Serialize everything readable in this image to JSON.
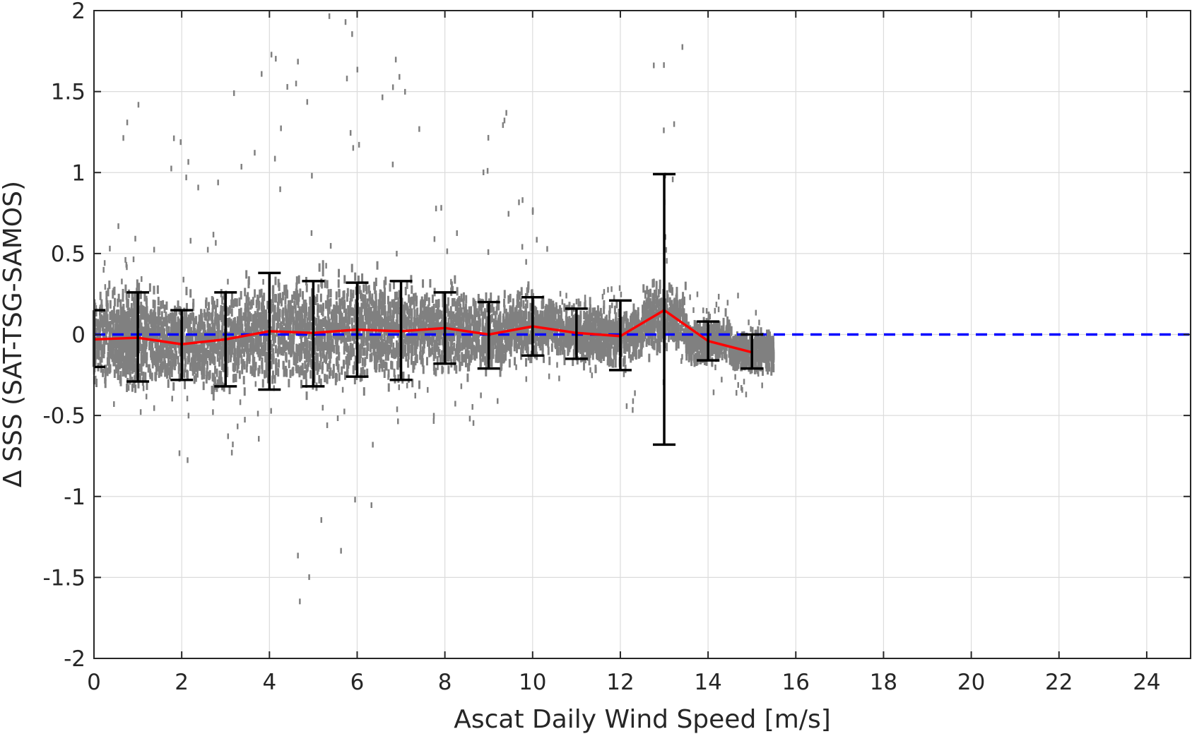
{
  "chart_data": {
    "type": "scatter",
    "xlabel": "Ascat Daily Wind Speed [m/s]",
    "ylabel": "Δ SSS (SAT-TSG-SAMOS)",
    "xlim": [
      0,
      25
    ],
    "ylim": [
      -2,
      2
    ],
    "xticks": [
      0,
      2,
      4,
      6,
      8,
      10,
      12,
      14,
      16,
      18,
      20,
      22,
      24
    ],
    "yticks": [
      2,
      1.5,
      1,
      0.5,
      0,
      -0.5,
      -1,
      -1.5,
      -2
    ],
    "grid": true,
    "colors": {
      "scatter": "#808080",
      "mean_line": "#ff0000",
      "zero_line": "#0000ff",
      "error_bars": "#000000"
    },
    "zero_line": {
      "y": 0,
      "style": "dashed"
    },
    "mean_line": {
      "x": [
        0,
        1,
        2,
        3,
        4,
        5,
        6,
        7,
        8,
        9,
        10,
        11,
        12,
        13,
        14,
        15
      ],
      "y": [
        -0.03,
        -0.02,
        -0.06,
        -0.03,
        0.02,
        0.01,
        0.03,
        0.02,
        0.04,
        0.0,
        0.05,
        0.01,
        -0.01,
        0.15,
        -0.04,
        -0.11
      ]
    },
    "error_bars": [
      {
        "x": 0,
        "low": -0.2,
        "high": 0.15
      },
      {
        "x": 1,
        "low": -0.29,
        "high": 0.26
      },
      {
        "x": 2,
        "low": -0.28,
        "high": 0.15
      },
      {
        "x": 3,
        "low": -0.32,
        "high": 0.26
      },
      {
        "x": 4,
        "low": -0.34,
        "high": 0.38
      },
      {
        "x": 5,
        "low": -0.32,
        "high": 0.33
      },
      {
        "x": 6,
        "low": -0.26,
        "high": 0.32
      },
      {
        "x": 7,
        "low": -0.28,
        "high": 0.33
      },
      {
        "x": 8,
        "low": -0.18,
        "high": 0.26
      },
      {
        "x": 9,
        "low": -0.21,
        "high": 0.2
      },
      {
        "x": 10,
        "low": -0.13,
        "high": 0.23
      },
      {
        "x": 11,
        "low": -0.15,
        "high": 0.16
      },
      {
        "x": 12,
        "low": -0.22,
        "high": 0.21
      },
      {
        "x": 13,
        "low": -0.68,
        "high": 0.99
      },
      {
        "x": 14,
        "low": -0.16,
        "high": 0.08
      },
      {
        "x": 15,
        "low": -0.21,
        "high": 0.0
      }
    ],
    "scatter_bins": [
      {
        "x": 0.5,
        "center": -0.02,
        "spread": 0.25,
        "max": 0.6,
        "min": -0.45
      },
      {
        "x": 1,
        "center": -0.02,
        "spread": 0.28,
        "max": 1.45,
        "min": -0.6
      },
      {
        "x": 2,
        "center": -0.05,
        "spread": 0.22,
        "max": 1.3,
        "min": -0.85
      },
      {
        "x": 3,
        "center": -0.03,
        "spread": 0.28,
        "max": 1.65,
        "min": -0.85
      },
      {
        "x": 4,
        "center": 0.02,
        "spread": 0.3,
        "max": 2.0,
        "min": -0.7
      },
      {
        "x": 5,
        "center": 0.01,
        "spread": 0.3,
        "max": 2.0,
        "min": -2.0
      },
      {
        "x": 6,
        "center": 0.03,
        "spread": 0.28,
        "max": 2.0,
        "min": -1.35
      },
      {
        "x": 7,
        "center": 0.02,
        "spread": 0.28,
        "max": 2.0,
        "min": -0.6
      },
      {
        "x": 8,
        "center": 0.04,
        "spread": 0.22,
        "max": 1.5,
        "min": -0.55
      },
      {
        "x": 9,
        "center": 0.0,
        "spread": 0.2,
        "max": 1.7,
        "min": -0.55
      },
      {
        "x": 10,
        "center": 0.05,
        "spread": 0.18,
        "max": 0.85,
        "min": -0.3
      },
      {
        "x": 11,
        "center": 0.01,
        "spread": 0.15,
        "max": 0.3,
        "min": -0.3
      },
      {
        "x": 12,
        "center": -0.01,
        "spread": 0.15,
        "max": 0.3,
        "min": -0.5
      },
      {
        "x": 13,
        "center": 0.1,
        "spread": 0.18,
        "max": 1.8,
        "min": -0.35
      },
      {
        "x": 14,
        "center": -0.04,
        "spread": 0.12,
        "max": 0.25,
        "min": -0.45
      },
      {
        "x": 15,
        "center": -0.1,
        "spread": 0.12,
        "max": 0.25,
        "min": -0.4
      }
    ]
  }
}
